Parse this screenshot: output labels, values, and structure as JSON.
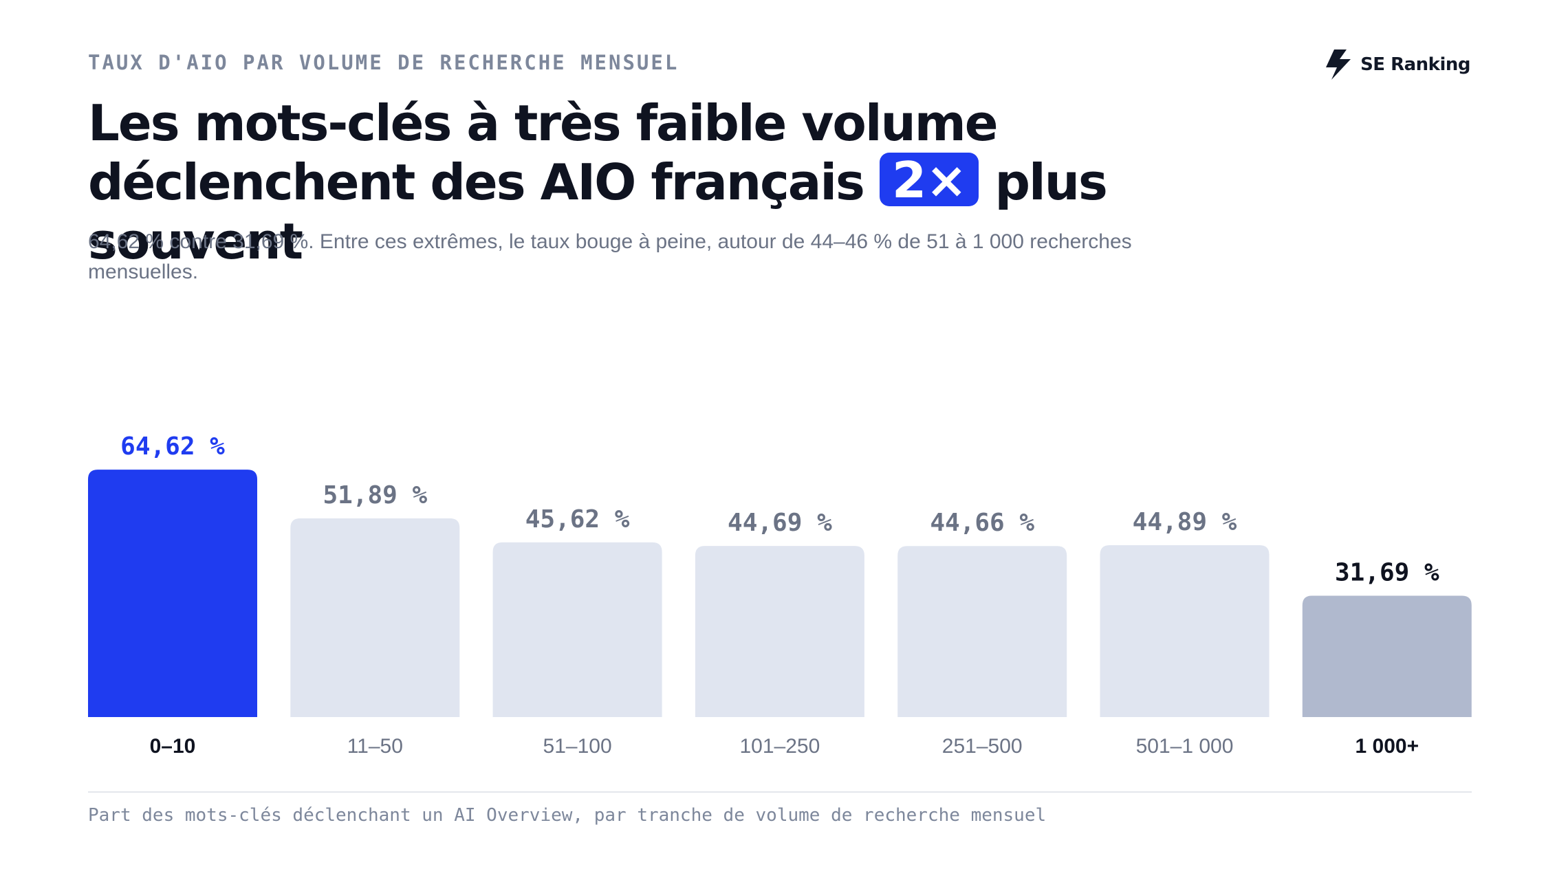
{
  "header": {
    "eyebrow": "TAUX D'AIO PAR VOLUME DE RECHERCHE MENSUEL",
    "headline_part1": "Les mots-clés à très faible volume déclenchent des AIO français",
    "headline_badge": "2×",
    "headline_part2": "plus souvent",
    "subtitle": "64,62 % contre 31,69 %. Entre ces extrêmes, le taux bouge à peine, autour de 44–46 % de 51 à 1 000 recherches mensuelles."
  },
  "logo": {
    "text": "SE Ranking",
    "icon": "se-ranking-bolt-icon"
  },
  "footnote": "Part des mots-clés déclenchant un AI Overview, par tranche de volume de recherche mensuel",
  "colors": {
    "highlight": "#1f3cf0",
    "default_bar": "#e0e5f0",
    "low_bar": "#b0b9ce",
    "default_label": "#6b7385",
    "emphasis_label": "#0f1320"
  },
  "chart_data": {
    "type": "bar",
    "title": "",
    "xlabel": "",
    "ylabel": "",
    "ylim": [
      0,
      100
    ],
    "grid": false,
    "categories": [
      "0–10",
      "11–50",
      "51–100",
      "101–250",
      "251–500",
      "501–1 000",
      "1 000+"
    ],
    "values": [
      64.62,
      51.89,
      45.62,
      44.69,
      44.66,
      44.89,
      31.69
    ],
    "value_labels": [
      "64,62 %",
      "51,89 %",
      "45,62 %",
      "44,69 %",
      "44,66 %",
      "44,89 %",
      "31,69 %"
    ],
    "styles": [
      "highlight",
      "default",
      "default",
      "default",
      "default",
      "default",
      "low"
    ]
  }
}
